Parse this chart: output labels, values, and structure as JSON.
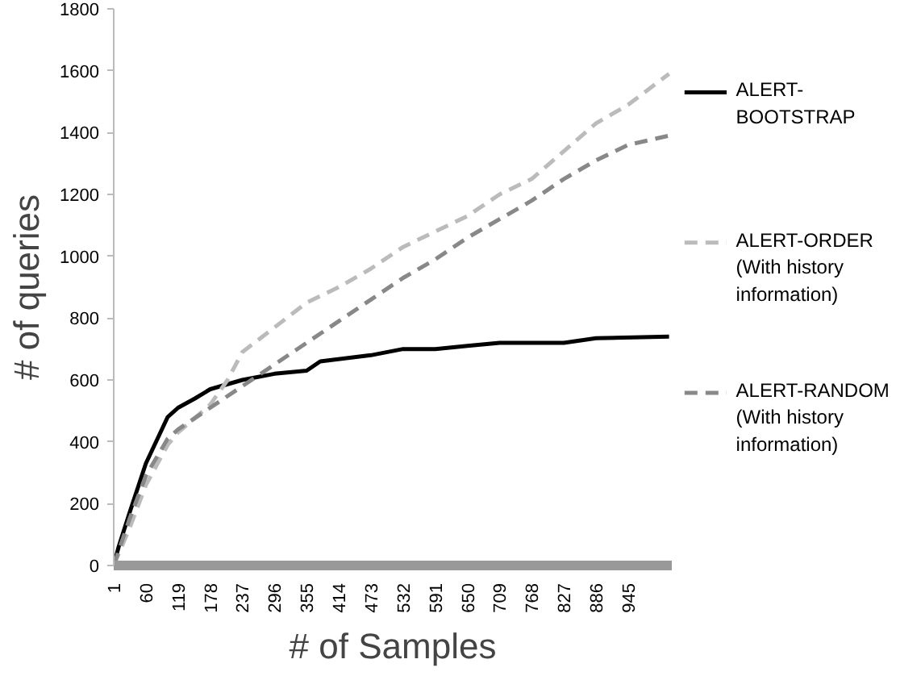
{
  "chart_data": {
    "type": "line",
    "xlabel": "# of Samples",
    "ylabel": "# of queries",
    "xlim": [
      1,
      1025
    ],
    "xticks": [
      1,
      60,
      119,
      178,
      237,
      296,
      355,
      414,
      473,
      532,
      591,
      650,
      709,
      768,
      827,
      886,
      945
    ],
    "ylim": [
      0,
      1800
    ],
    "yticks": [
      0,
      200,
      400,
      600,
      800,
      1000,
      1200,
      1400,
      1600,
      1800
    ],
    "grid": false,
    "legend": "right",
    "series": [
      {
        "name": "ALERT-\nBOOTSTRAP",
        "color": "#000000",
        "line_style": "solid",
        "x": [
          1,
          10,
          30,
          60,
          100,
          119,
          150,
          178,
          237,
          296,
          355,
          380,
          473,
          532,
          591,
          650,
          709,
          827,
          886,
          1020
        ],
        "values": [
          0,
          60,
          170,
          330,
          480,
          510,
          540,
          570,
          600,
          620,
          630,
          660,
          680,
          700,
          700,
          710,
          720,
          720,
          735,
          740
        ]
      },
      {
        "name": "ALERT-ORDER\n(With history\ninformation)",
        "color": "#bbbbbb",
        "line_style": "dashed",
        "x": [
          1,
          30,
          60,
          100,
          119,
          178,
          210,
          237,
          296,
          355,
          414,
          473,
          532,
          591,
          650,
          709,
          768,
          827,
          886,
          945,
          1020
        ],
        "values": [
          0,
          120,
          260,
          390,
          430,
          520,
          600,
          690,
          770,
          850,
          900,
          960,
          1030,
          1080,
          1130,
          1200,
          1250,
          1340,
          1430,
          1490,
          1590
        ]
      },
      {
        "name": "ALERT-RANDOM\n(With history\ninformation)",
        "color": "#888888",
        "line_style": "dashed",
        "x": [
          1,
          30,
          60,
          100,
          119,
          178,
          237,
          296,
          355,
          414,
          473,
          532,
          591,
          650,
          709,
          768,
          827,
          886,
          945,
          1020
        ],
        "values": [
          0,
          150,
          290,
          410,
          440,
          510,
          580,
          650,
          720,
          790,
          860,
          930,
          990,
          1060,
          1120,
          1180,
          1250,
          1310,
          1360,
          1390
        ]
      }
    ]
  }
}
